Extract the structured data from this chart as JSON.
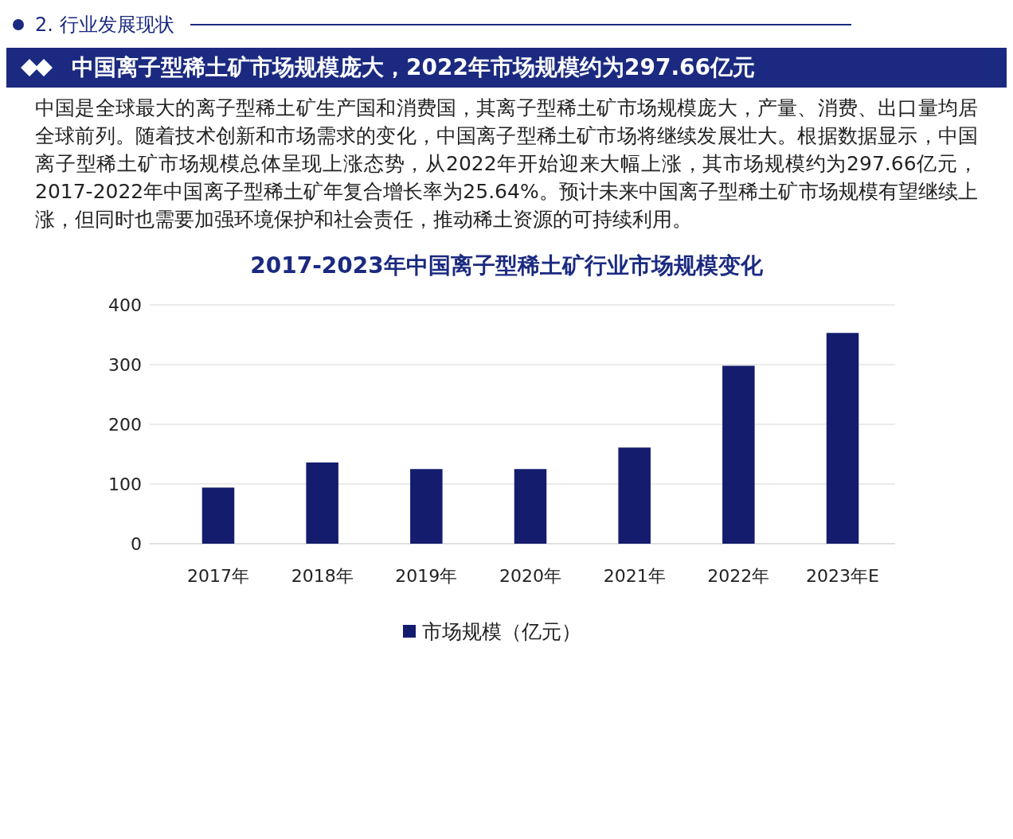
{
  "chart_data": {
    "type": "bar",
    "title": "2017-2023年中国离子型稀土矿行业市场规模变化",
    "annotations": [
      "2. 行业发展现状",
      "中国离子型稀土矿市场规模庞大，2022年市场规模约为297.66亿元",
      "中国是全球最大的离子型稀土矿生产国和消费国，其离子型稀土矿市场规模庞大，产量、消费、出口量均居全球前列。随着技术创新和市场需求的变化，中国离子型稀土矿市场将继续发展壮大。根据数据显示，中国离子型稀土矿市场规模总体呈现上涨态势，从2022年开始迎来大幅上涨，其市场规模约为297.66亿元，2017-2022年中国离子型稀土矿年复合增长率为25.64%。预计未来中国离子型稀土矿市场规模有望继续上涨，但同时也需要加强环境保护和社会责任，推动稀土资源的可持续利用。"
    ],
    "categories": [
      "2017年",
      "2018年",
      "2019年",
      "2020年",
      "2021年",
      "2022年",
      "2023年E"
    ],
    "series": [
      {
        "name": "市场规模（亿元）",
        "color": "#141c6e",
        "values": [
          94,
          136,
          125,
          125,
          161,
          298,
          353
        ]
      }
    ],
    "ylim": [
      0,
      400
    ],
    "yticks": [
      0,
      100,
      200,
      300,
      400
    ],
    "grid": "y",
    "legend": "bottom"
  }
}
